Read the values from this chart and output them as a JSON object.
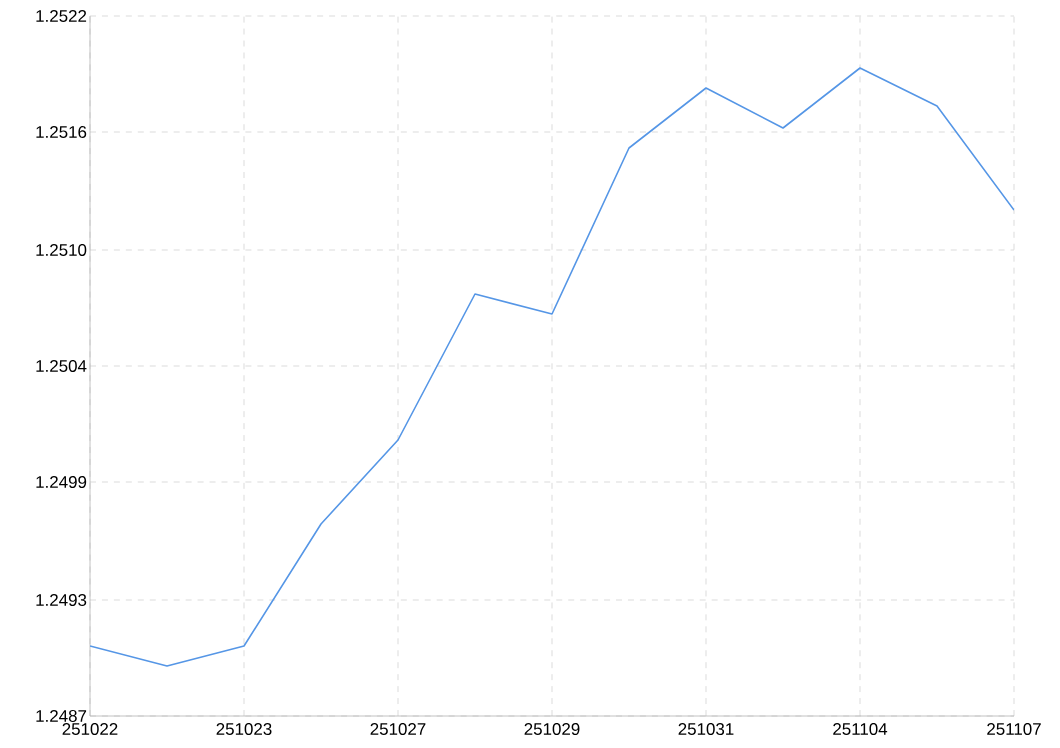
{
  "chart_data": {
    "type": "line",
    "categories": [
      "251022",
      null,
      "251023",
      null,
      "251027",
      null,
      "251029",
      null,
      "251031",
      null,
      "251104",
      null,
      "251107"
    ],
    "series": [
      {
        "color": "#5596e6",
        "values": [
          1.24905,
          1.24895,
          1.24905,
          1.24966,
          1.25008,
          1.25081,
          1.25071,
          1.25154,
          1.25184,
          1.25164,
          1.25194,
          1.25175,
          1.25123
        ]
      }
    ],
    "ylim": [
      1.2487,
      1.2522
    ],
    "yticks": [
      1.2487,
      {
        "value": 1.24928,
        "label": "1.2493"
      },
      {
        "value": 1.24987,
        "label": "1.2499"
      },
      {
        "value": 1.25045,
        "label": "1.2504"
      },
      {
        "value": 1.25103,
        "label": "1.2510"
      },
      {
        "value": 1.25162,
        "label": "1.2516"
      },
      1.2522
    ],
    "grid": true,
    "marker": "none",
    "line_style": "solid"
  }
}
